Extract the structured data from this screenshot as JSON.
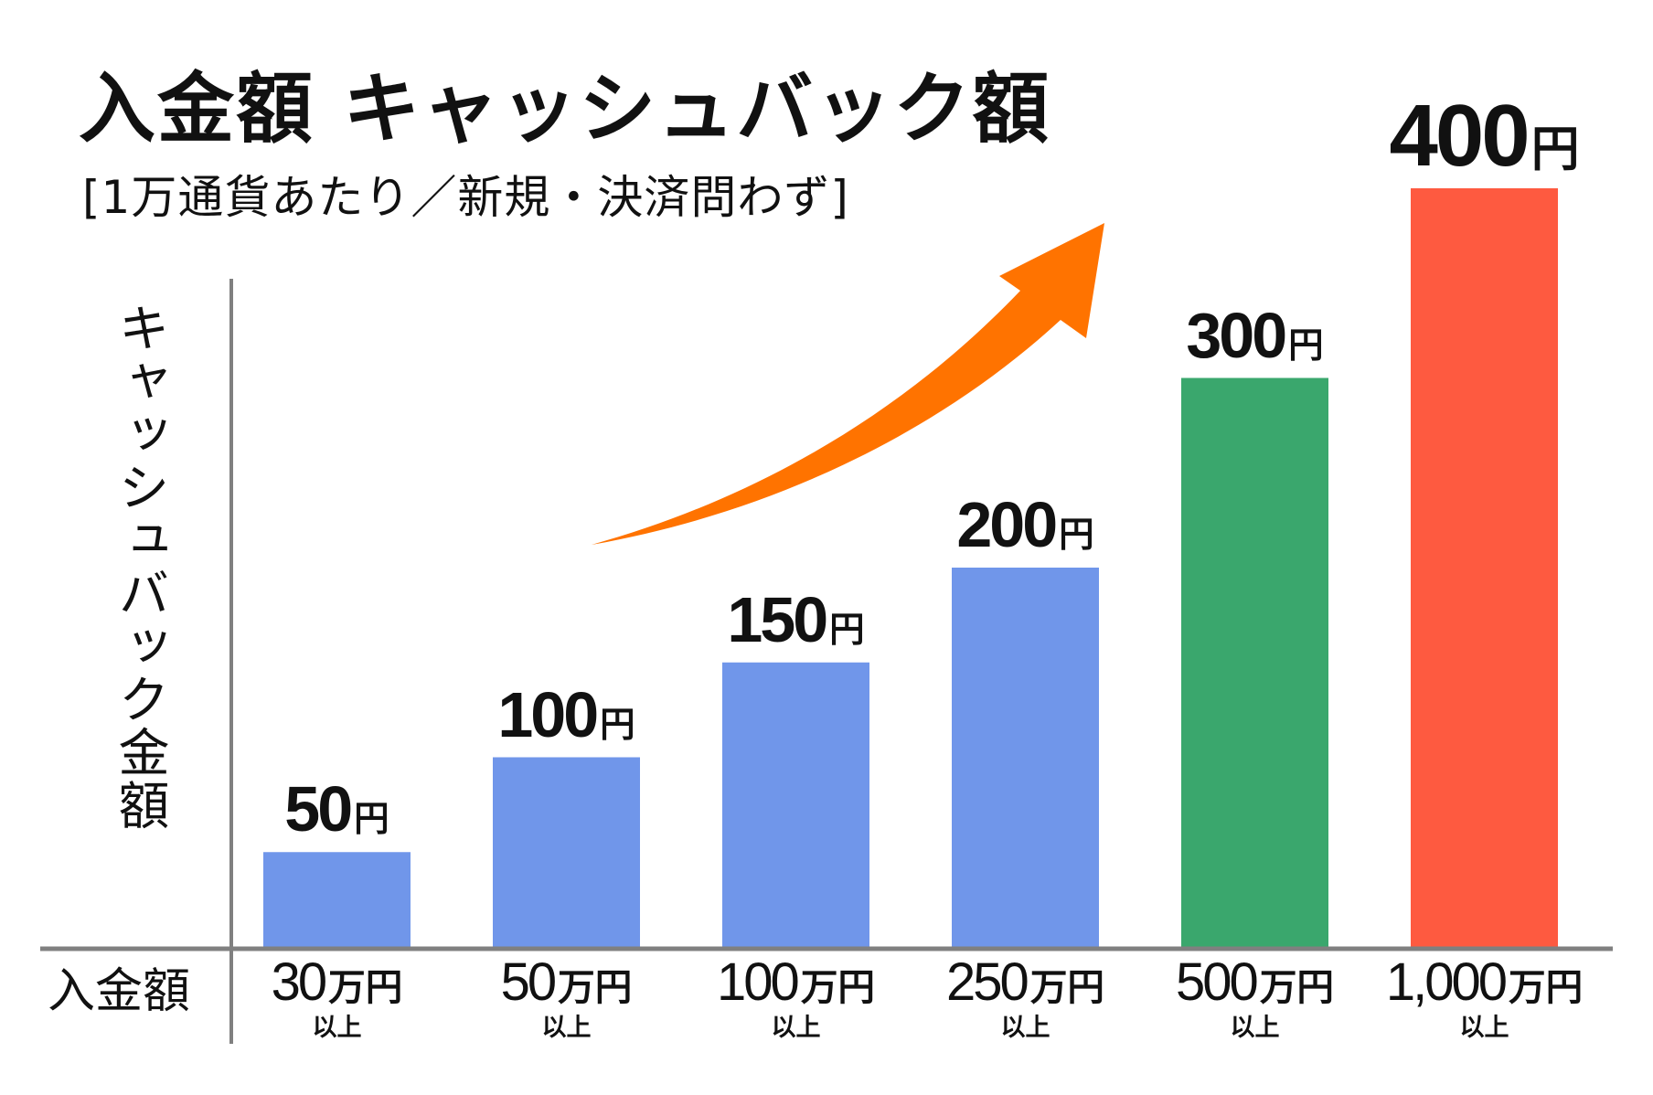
{
  "chart_data": {
    "type": "bar",
    "title": "入金額 キャッシュバック額",
    "subtitle": "[1万通貨あたり／新規・決済問わず]",
    "xlabel": "入金額",
    "ylabel": "キャッシュバック金額",
    "categories": [
      {
        "amount": "30",
        "unit": "万円",
        "suffix": "以上"
      },
      {
        "amount": "50",
        "unit": "万円",
        "suffix": "以上"
      },
      {
        "amount": "100",
        "unit": "万円",
        "suffix": "以上"
      },
      {
        "amount": "250",
        "unit": "万円",
        "suffix": "以上"
      },
      {
        "amount": "500",
        "unit": "万円",
        "suffix": "以上"
      },
      {
        "amount": "1,000",
        "unit": "万円",
        "suffix": "以上"
      }
    ],
    "values": [
      50,
      100,
      150,
      200,
      300,
      400
    ],
    "value_unit": "円",
    "colors": [
      "#7096ea",
      "#7096ea",
      "#7096ea",
      "#7096ea",
      "#3aa76d",
      "#fe5a40"
    ],
    "arrow_color": "#ff7300",
    "axis_color": "#808080",
    "ylim": [
      0,
      400
    ],
    "grid": false
  }
}
